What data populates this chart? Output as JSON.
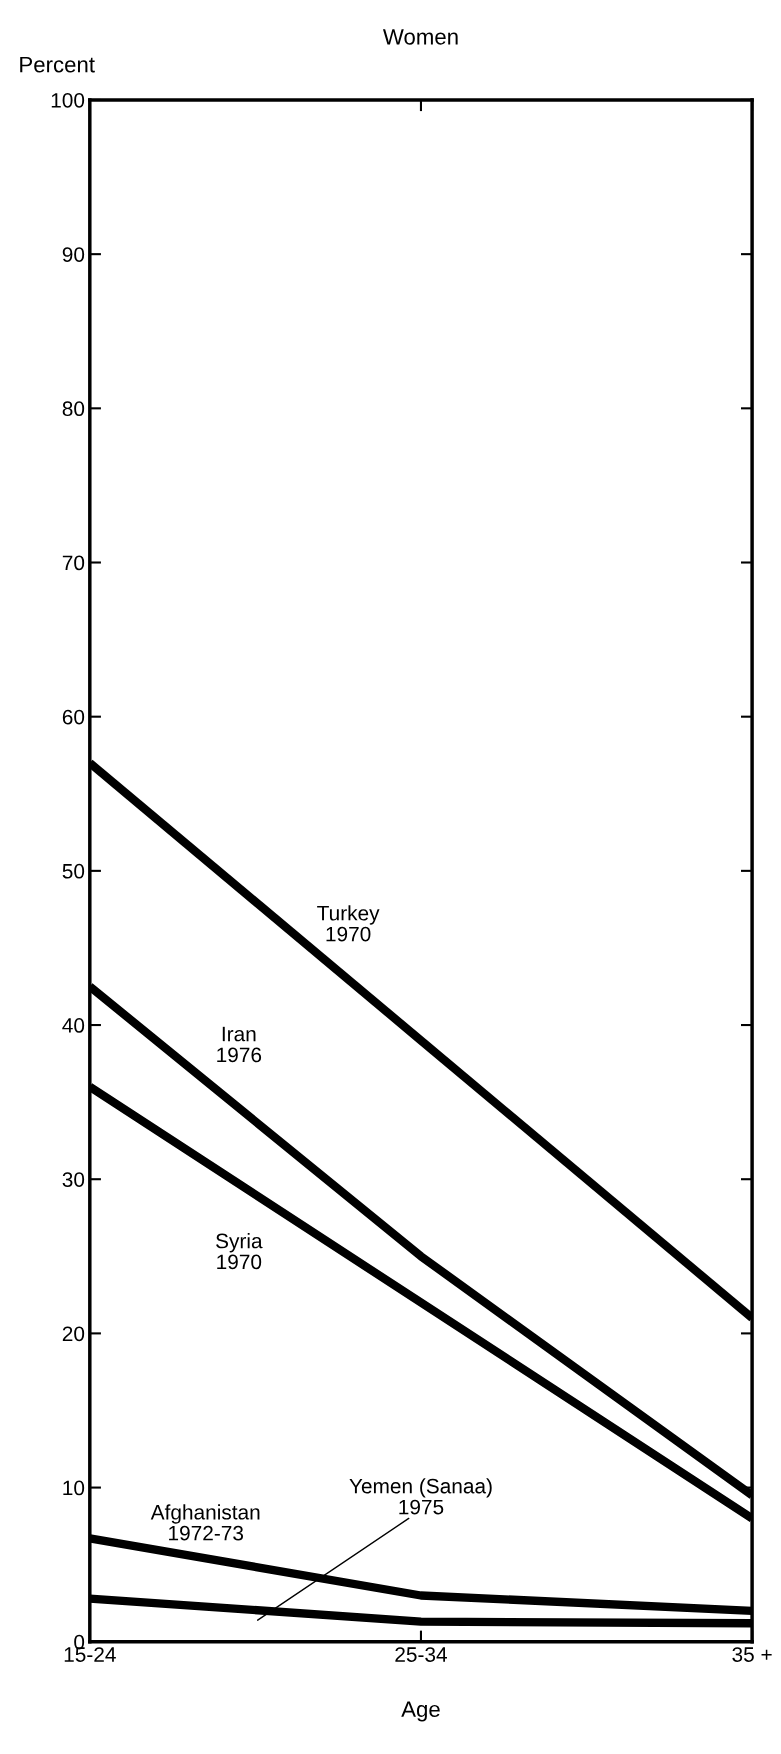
{
  "chart_data": {
    "type": "line",
    "title": "Women",
    "ylabel": "Percent",
    "xlabel": "Age",
    "categories": [
      "15-24",
      "25-34",
      "35 +"
    ],
    "series": [
      {
        "name": "Turkey\n1970",
        "color": "#000000",
        "values": [
          57,
          39,
          21
        ]
      },
      {
        "name": "Iran\n1976",
        "color": "#000000",
        "values": [
          42.5,
          25,
          9.5
        ]
      },
      {
        "name": "Syria\n1970",
        "color": "#000000",
        "values": [
          36,
          22,
          8
        ]
      },
      {
        "name": "Afghanistan\n1972-73",
        "color": "#000000",
        "values": [
          6.7,
          3,
          2
        ]
      },
      {
        "name": "Yemen (Sanaa)\n1975",
        "color": "#000000",
        "values": [
          2.8,
          1.3,
          1.2
        ]
      }
    ],
    "ylim": [
      0,
      100
    ],
    "yticks": [
      0,
      10,
      20,
      30,
      40,
      50,
      60,
      70,
      80,
      90,
      100
    ],
    "grid": false,
    "legend": false,
    "marker": "none",
    "line_style": "solid"
  }
}
